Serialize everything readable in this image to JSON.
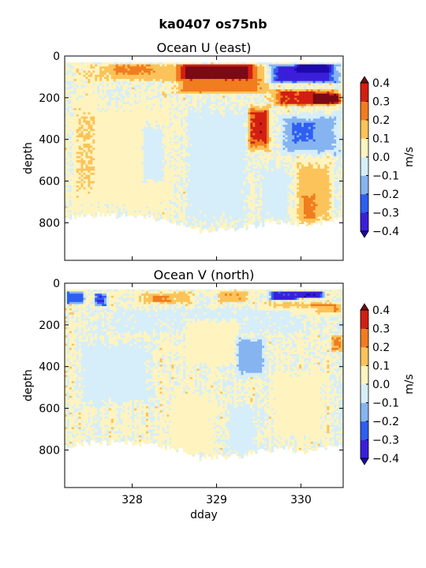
{
  "figure": {
    "suptitle": "ka0407 os75nb"
  },
  "colors": {
    "levels": [
      -0.4,
      -0.3,
      -0.2,
      -0.1,
      0.0,
      0.1,
      0.2,
      0.3,
      0.4
    ],
    "bins": [
      "#3a1fd9",
      "#2f5ef2",
      "#86b4f0",
      "#d6eefa",
      "#fff4bf",
      "#fbc35a",
      "#f07d1f",
      "#d21f12"
    ],
    "under": "#1c0aa8",
    "over": "#7a0a14",
    "nodata": "#ffffff"
  },
  "chart_data": [
    {
      "type": "heatmap",
      "title": "Ocean U (east)",
      "xlabel": "",
      "ylabel": "depth",
      "xlim": [
        327.2,
        330.5
      ],
      "ylim": [
        980,
        0
      ],
      "xticks": [
        328,
        329,
        330
      ],
      "xtick_labels": [
        "",
        "",
        ""
      ],
      "yticks": [
        0,
        200,
        400,
        600,
        800
      ],
      "ytick_labels": [
        "0",
        "200",
        "400",
        "600",
        "800"
      ],
      "colorbar": {
        "label": "m/s",
        "ticks": [
          "0.4",
          "0.3",
          "0.2",
          "0.1",
          "0.0",
          "−0.1",
          "−0.2",
          "−0.3",
          "−0.4"
        ]
      },
      "depth_range": [
        30,
        850
      ],
      "bottom_profile": [
        [
          327.2,
          780
        ],
        [
          327.6,
          760
        ],
        [
          328.0,
          770
        ],
        [
          328.3,
          780
        ],
        [
          328.6,
          800
        ],
        [
          328.8,
          840
        ],
        [
          329.0,
          830
        ],
        [
          329.3,
          830
        ],
        [
          329.6,
          800
        ],
        [
          329.8,
          790
        ],
        [
          330.0,
          810
        ],
        [
          330.2,
          800
        ],
        [
          330.5,
          780
        ]
      ],
      "features": [
        {
          "x": [
            327.2,
            330.5
          ],
          "depth": [
            30,
            120
          ],
          "value": 0.15
        },
        {
          "x": [
            327.7,
            328.3
          ],
          "depth": [
            30,
            90
          ],
          "value": 0.22
        },
        {
          "x": [
            328.5,
            329.5
          ],
          "depth": [
            30,
            120
          ],
          "value": 0.55
        },
        {
          "x": [
            328.4,
            329.7
          ],
          "depth": [
            100,
            180
          ],
          "value": 0.25
        },
        {
          "x": [
            329.55,
            330.5
          ],
          "depth": [
            30,
            130
          ],
          "value": -0.35
        },
        {
          "x": [
            329.9,
            330.4
          ],
          "depth": [
            30,
            80
          ],
          "value": -0.45
        },
        {
          "x": [
            329.6,
            330.5
          ],
          "depth": [
            150,
            240
          ],
          "value": 0.32
        },
        {
          "x": [
            330.1,
            330.5
          ],
          "depth": [
            170,
            230
          ],
          "value": 0.45
        },
        {
          "x": [
            329.35,
            329.65
          ],
          "depth": [
            220,
            460
          ],
          "value": 0.3
        },
        {
          "x": [
            329.45,
            329.6
          ],
          "depth": [
            250,
            400
          ],
          "value": 0.38
        },
        {
          "x": [
            329.7,
            330.5
          ],
          "depth": [
            260,
            480
          ],
          "value": -0.15
        },
        {
          "x": [
            329.85,
            330.2
          ],
          "depth": [
            300,
            420
          ],
          "value": -0.22
        },
        {
          "x": [
            329.9,
            330.4
          ],
          "depth": [
            480,
            820
          ],
          "value": 0.14
        },
        {
          "x": [
            330.0,
            330.2
          ],
          "depth": [
            640,
            800
          ],
          "value": 0.22
        },
        {
          "x": [
            327.2,
            328.6
          ],
          "depth": [
            180,
            780
          ],
          "value": 0.04
        },
        {
          "x": [
            327.3,
            327.6
          ],
          "depth": [
            200,
            700
          ],
          "value": 0.1
        },
        {
          "x": [
            328.1,
            328.4
          ],
          "depth": [
            300,
            620
          ],
          "value": -0.05
        },
        {
          "x": [
            328.6,
            329.4
          ],
          "depth": [
            200,
            840
          ],
          "value": -0.06
        },
        {
          "x": [
            329.5,
            329.9
          ],
          "depth": [
            500,
            800
          ],
          "value": -0.04
        }
      ]
    },
    {
      "type": "heatmap",
      "title": "Ocean V (north)",
      "xlabel": "dday",
      "ylabel": "depth",
      "xlim": [
        327.2,
        330.5
      ],
      "ylim": [
        980,
        0
      ],
      "xticks": [
        328,
        329,
        330
      ],
      "xtick_labels": [
        "328",
        "329",
        "330"
      ],
      "yticks": [
        0,
        200,
        400,
        600,
        800
      ],
      "ytick_labels": [
        "0",
        "200",
        "400",
        "600",
        "800"
      ],
      "colorbar": {
        "label": "m/s",
        "ticks": [
          "0.4",
          "0.3",
          "0.2",
          "0.1",
          "0.0",
          "−0.1",
          "−0.2",
          "−0.3",
          "−0.4"
        ]
      },
      "depth_range": [
        30,
        850
      ],
      "bottom_profile": [
        [
          327.2,
          780
        ],
        [
          327.6,
          760
        ],
        [
          328.0,
          770
        ],
        [
          328.3,
          780
        ],
        [
          328.6,
          800
        ],
        [
          328.8,
          840
        ],
        [
          329.0,
          830
        ],
        [
          329.3,
          830
        ],
        [
          329.6,
          800
        ],
        [
          329.8,
          790
        ],
        [
          330.0,
          810
        ],
        [
          330.2,
          800
        ],
        [
          330.5,
          780
        ]
      ],
      "features": [
        {
          "x": [
            327.2,
            327.45
          ],
          "depth": [
            30,
            100
          ],
          "value": -0.25
        },
        {
          "x": [
            327.55,
            327.7
          ],
          "depth": [
            40,
            110
          ],
          "value": -0.3
        },
        {
          "x": [
            328.0,
            328.8
          ],
          "depth": [
            30,
            100
          ],
          "value": 0.12
        },
        {
          "x": [
            328.2,
            328.5
          ],
          "depth": [
            50,
            90
          ],
          "value": 0.22
        },
        {
          "x": [
            329.0,
            329.4
          ],
          "depth": [
            30,
            90
          ],
          "value": 0.18
        },
        {
          "x": [
            329.6,
            330.0
          ],
          "depth": [
            30,
            80
          ],
          "value": -0.32
        },
        {
          "x": [
            329.9,
            330.3
          ],
          "depth": [
            30,
            70
          ],
          "value": -0.38
        },
        {
          "x": [
            329.5,
            330.5
          ],
          "depth": [
            80,
            160
          ],
          "value": 0.16
        },
        {
          "x": [
            330.1,
            330.5
          ],
          "depth": [
            90,
            140
          ],
          "value": 0.24
        },
        {
          "x": [
            330.35,
            330.5
          ],
          "depth": [
            240,
            330
          ],
          "value": 0.22
        },
        {
          "x": [
            327.2,
            330.5
          ],
          "depth": [
            100,
            250
          ],
          "value": -0.02
        },
        {
          "x": [
            327.3,
            328.3
          ],
          "depth": [
            250,
            600
          ],
          "value": -0.05
        },
        {
          "x": [
            328.6,
            329.3
          ],
          "depth": [
            160,
            400
          ],
          "value": 0.06
        },
        {
          "x": [
            329.2,
            329.6
          ],
          "depth": [
            240,
            450
          ],
          "value": -0.14
        },
        {
          "x": [
            329.6,
            330.3
          ],
          "depth": [
            400,
            760
          ],
          "value": 0.05
        },
        {
          "x": [
            328.4,
            329.0
          ],
          "depth": [
            500,
            830
          ],
          "value": 0.04
        },
        {
          "x": [
            329.1,
            329.5
          ],
          "depth": [
            560,
            830
          ],
          "value": -0.04
        }
      ]
    }
  ]
}
